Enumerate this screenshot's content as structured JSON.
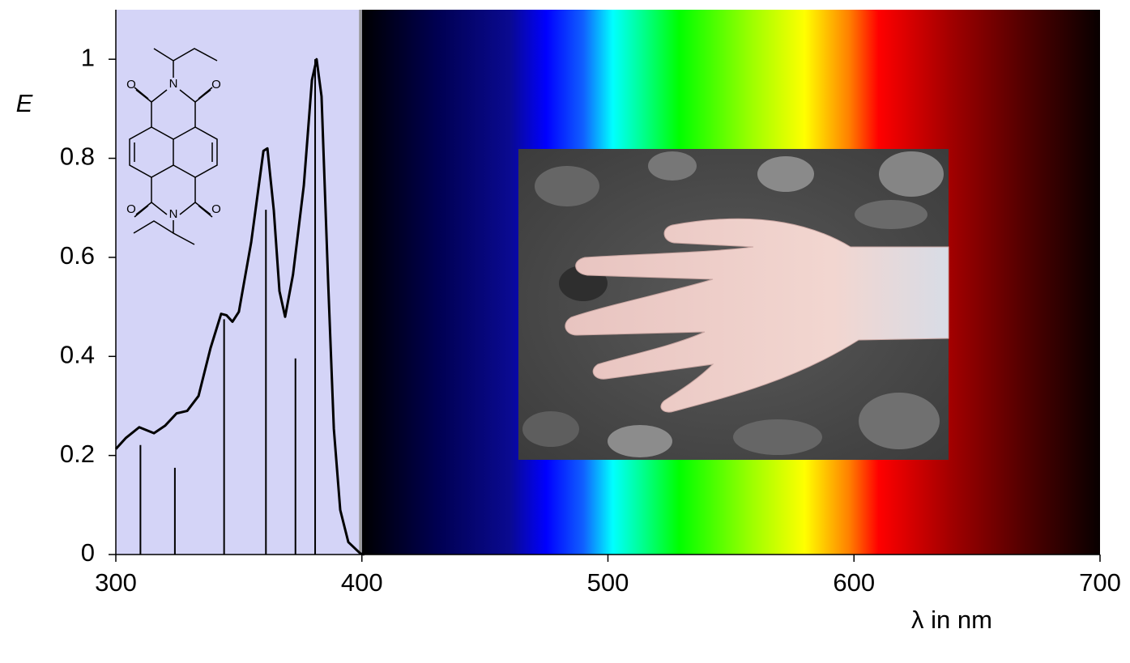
{
  "chart_data": {
    "type": "line",
    "y_label": "E",
    "x_label": "λ in nm",
    "xlim": [
      300,
      700
    ],
    "xticks": [
      300,
      400,
      500,
      600,
      700
    ],
    "ylim": [
      0,
      1.1
    ],
    "yticks": [
      0,
      0.2,
      0.4,
      0.6,
      0.8,
      1
    ],
    "shaded_region": [
      300,
      400
    ],
    "spectrum_band": [
      400,
      700
    ],
    "color": "#000000",
    "curve": {
      "x": [
        300,
        304,
        309.5,
        315.5,
        320,
        324.7,
        329,
        333.6,
        338.5,
        342.8,
        345,
        347.4,
        350,
        355,
        360,
        361.6,
        364.2,
        366.5,
        368.8,
        372,
        376.4,
        379.7,
        381.6,
        383.6,
        386.3,
        388.6,
        391.2,
        394.5,
        399.4,
        401
      ],
      "values": [
        0.213,
        0.235,
        0.257,
        0.245,
        0.26,
        0.285,
        0.29,
        0.32,
        0.417,
        0.486,
        0.483,
        0.47,
        0.49,
        0.63,
        0.815,
        0.82,
        0.695,
        0.532,
        0.48,
        0.565,
        0.745,
        0.958,
        1.0,
        0.925,
        0.548,
        0.254,
        0.09,
        0.025,
        0.002,
        0
      ]
    },
    "sticks": {
      "x": [
        310,
        324,
        344,
        361,
        373,
        381
      ],
      "values": [
        0.221,
        0.175,
        0.475,
        0.696,
        0.396,
        1.0
      ]
    },
    "molecule_atoms": [
      "O",
      "N",
      "O",
      "O",
      "N",
      "O"
    ]
  }
}
